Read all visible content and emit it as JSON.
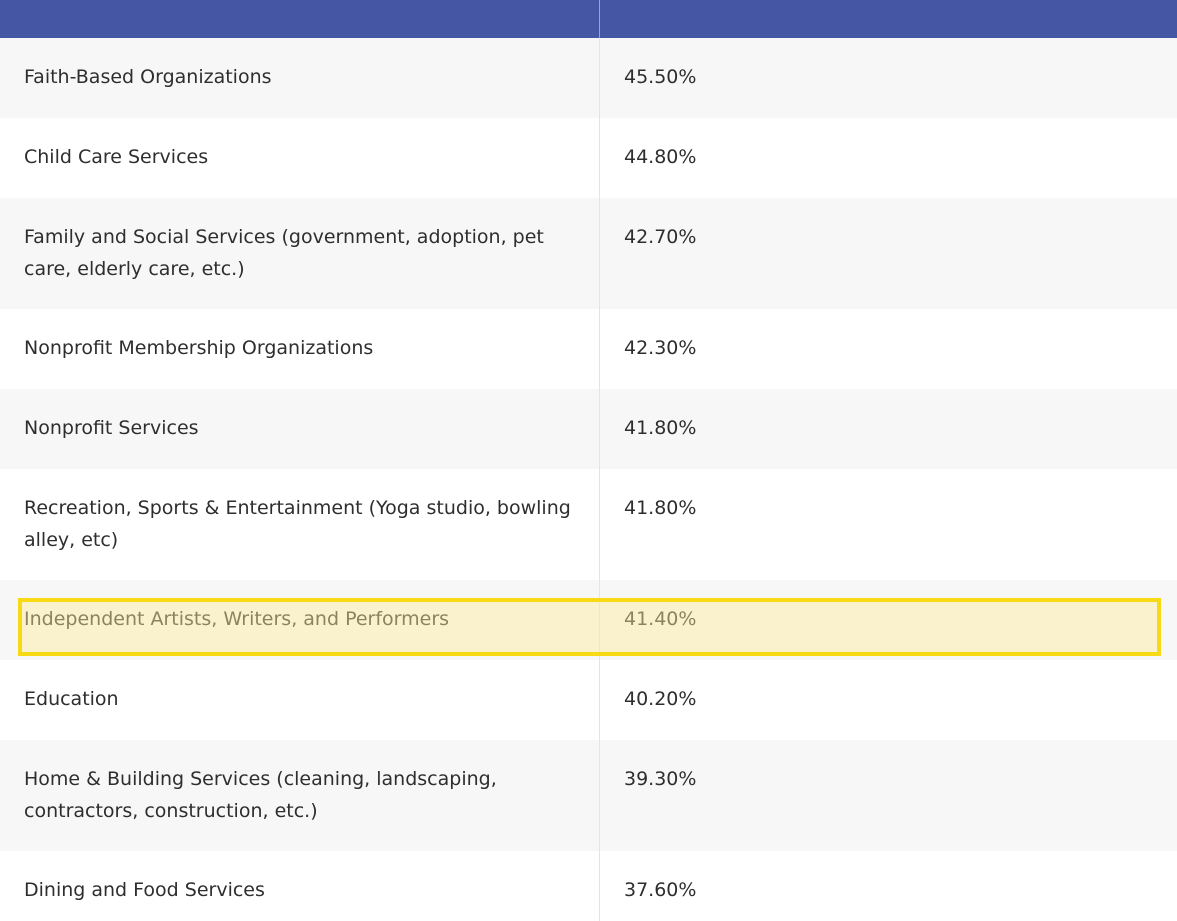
{
  "table": {
    "rows": [
      {
        "label": "Faith-Based Organizations",
        "value": "45.50%"
      },
      {
        "label": "Child Care Services",
        "value": "44.80%"
      },
      {
        "label": "Family and Social Services (government, adoption, pet care, elderly care, etc.)",
        "value": "42.70%"
      },
      {
        "label": "Nonprofit Membership Organizations",
        "value": "42.30%"
      },
      {
        "label": "Nonprofit Services",
        "value": "41.80%"
      },
      {
        "label": "Recreation, Sports & Entertainment (Yoga studio, bowling alley, etc)",
        "value": "41.80%"
      },
      {
        "label": "Independent Artists, Writers, and Performers",
        "value": "41.40%"
      },
      {
        "label": "Education",
        "value": "40.20%"
      },
      {
        "label": "Home & Building Services (cleaning, landscaping, contractors, construction, etc.)",
        "value": "39.30%"
      },
      {
        "label": "Dining and Food Services",
        "value": "37.60%"
      }
    ],
    "highlighted_row": "Independent Artists, Writers, and Performers"
  },
  "colors": {
    "header": "#4456a4",
    "row_shaded": "#f7f7f7",
    "highlight_border": "#f7da14"
  }
}
